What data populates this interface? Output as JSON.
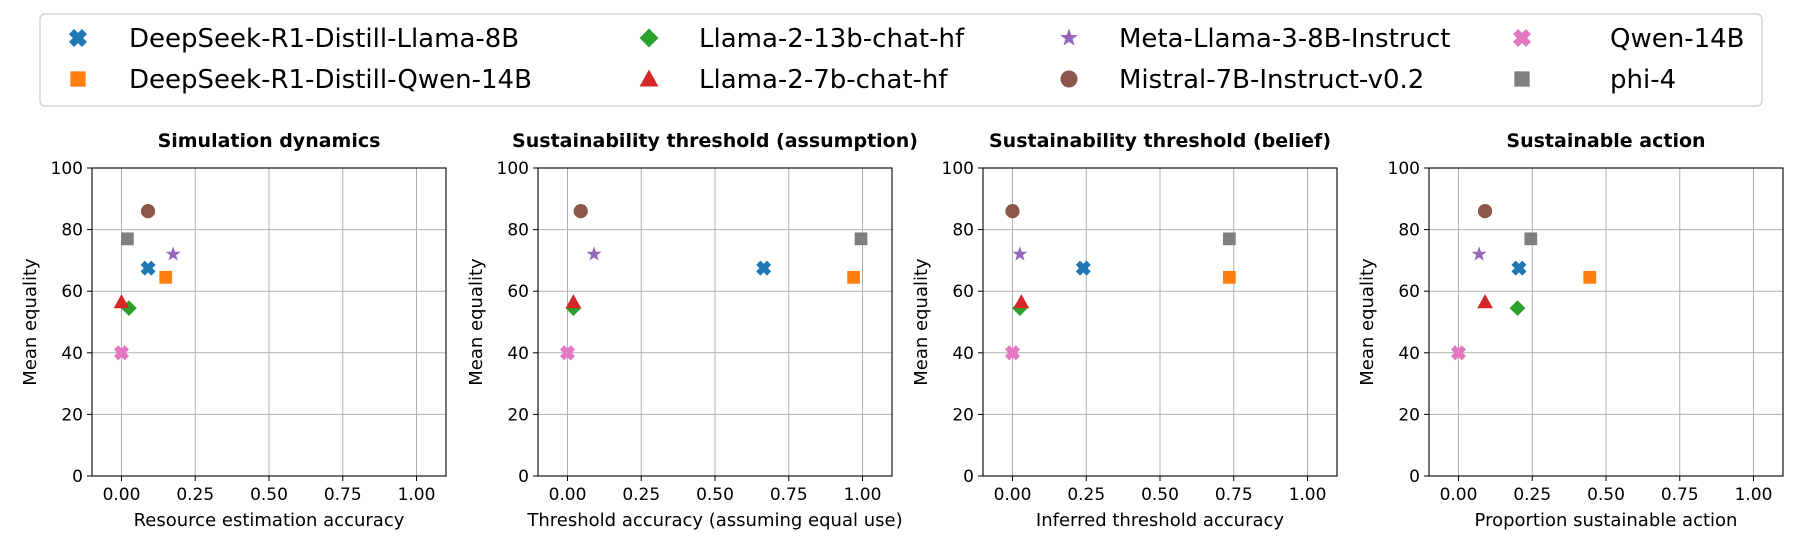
{
  "legend": {
    "placement": "top",
    "columns": 4,
    "entries": [
      {
        "name": "DeepSeek-R1-Distill-Llama-8B",
        "color": "#1f77b4",
        "marker": "x-cross"
      },
      {
        "name": "DeepSeek-R1-Distill-Qwen-14B",
        "color": "#ff7f0e",
        "marker": "square"
      },
      {
        "name": "Llama-2-13b-chat-hf",
        "color": "#2ca02c",
        "marker": "diamond"
      },
      {
        "name": "Llama-2-7b-chat-hf",
        "color": "#d62728",
        "marker": "triangle"
      },
      {
        "name": "Meta-Llama-3-8B-Instruct",
        "color": "#9467bd",
        "marker": "star"
      },
      {
        "name": "Mistral-7B-Instruct-v0.2",
        "color": "#8c564b",
        "marker": "circle"
      },
      {
        "name": "Qwen-14B",
        "color": "#e377c2",
        "marker": "x-cross"
      },
      {
        "name": "phi-4",
        "color": "#7f7f7f",
        "marker": "square"
      }
    ]
  },
  "chart_data": [
    {
      "type": "scatter",
      "title": "Simulation dynamics",
      "xlabel": "Resource estimation accuracy",
      "ylabel": "Mean equality",
      "xlim": [
        -0.1,
        1.1
      ],
      "ylim": [
        0,
        100
      ],
      "xticks": [
        "0.00",
        "0.25",
        "0.50",
        "0.75",
        "1.00"
      ],
      "yticks": [
        "0",
        "20",
        "40",
        "60",
        "80",
        "100"
      ],
      "grid": true,
      "points": [
        {
          "series": "DeepSeek-R1-Distill-Llama-8B",
          "x": 0.09,
          "y": 67.5
        },
        {
          "series": "DeepSeek-R1-Distill-Qwen-14B",
          "x": 0.15,
          "y": 64.5
        },
        {
          "series": "Llama-2-13b-chat-hf",
          "x": 0.025,
          "y": 54.5
        },
        {
          "series": "Llama-2-7b-chat-hf",
          "x": 0.0,
          "y": 56.5
        },
        {
          "series": "Meta-Llama-3-8B-Instruct",
          "x": 0.175,
          "y": 72
        },
        {
          "series": "Mistral-7B-Instruct-v0.2",
          "x": 0.09,
          "y": 86
        },
        {
          "series": "Qwen-14B",
          "x": 0.0,
          "y": 40
        },
        {
          "series": "phi-4",
          "x": 0.02,
          "y": 77
        }
      ]
    },
    {
      "type": "scatter",
      "title": "Sustainability threshold (assumption)",
      "xlabel": "Threshold accuracy (assuming equal use)",
      "ylabel": "Mean equality",
      "xlim": [
        -0.1,
        1.1
      ],
      "ylim": [
        0,
        100
      ],
      "xticks": [
        "0.00",
        "0.25",
        "0.50",
        "0.75",
        "1.00"
      ],
      "yticks": [
        "0",
        "20",
        "40",
        "60",
        "80",
        "100"
      ],
      "grid": true,
      "points": [
        {
          "series": "DeepSeek-R1-Distill-Llama-8B",
          "x": 0.665,
          "y": 67.5
        },
        {
          "series": "DeepSeek-R1-Distill-Qwen-14B",
          "x": 0.97,
          "y": 64.5
        },
        {
          "series": "Llama-2-13b-chat-hf",
          "x": 0.02,
          "y": 54.5
        },
        {
          "series": "Llama-2-7b-chat-hf",
          "x": 0.02,
          "y": 56.5
        },
        {
          "series": "Meta-Llama-3-8B-Instruct",
          "x": 0.09,
          "y": 72
        },
        {
          "series": "Mistral-7B-Instruct-v0.2",
          "x": 0.045,
          "y": 86
        },
        {
          "series": "Qwen-14B",
          "x": 0.0,
          "y": 40
        },
        {
          "series": "phi-4",
          "x": 0.995,
          "y": 77
        }
      ]
    },
    {
      "type": "scatter",
      "title": "Sustainability threshold (belief)",
      "xlabel": "Inferred threshold accuracy",
      "ylabel": "Mean equality",
      "xlim": [
        -0.1,
        1.1
      ],
      "ylim": [
        0,
        100
      ],
      "xticks": [
        "0.00",
        "0.25",
        "0.50",
        "0.75",
        "1.00"
      ],
      "yticks": [
        "0",
        "20",
        "40",
        "60",
        "80",
        "100"
      ],
      "grid": true,
      "points": [
        {
          "series": "DeepSeek-R1-Distill-Llama-8B",
          "x": 0.24,
          "y": 67.5
        },
        {
          "series": "DeepSeek-R1-Distill-Qwen-14B",
          "x": 0.735,
          "y": 64.5
        },
        {
          "series": "Llama-2-13b-chat-hf",
          "x": 0.025,
          "y": 54.5
        },
        {
          "series": "Llama-2-7b-chat-hf",
          "x": 0.03,
          "y": 56.5
        },
        {
          "series": "Meta-Llama-3-8B-Instruct",
          "x": 0.025,
          "y": 72
        },
        {
          "series": "Mistral-7B-Instruct-v0.2",
          "x": 0.0,
          "y": 86
        },
        {
          "series": "Qwen-14B",
          "x": 0.0,
          "y": 40
        },
        {
          "series": "phi-4",
          "x": 0.735,
          "y": 77
        }
      ]
    },
    {
      "type": "scatter",
      "title": "Sustainable action",
      "xlabel": "Proportion sustainable action",
      "ylabel": "Mean equality",
      "xlim": [
        -0.1,
        1.1
      ],
      "ylim": [
        0,
        100
      ],
      "xticks": [
        "0.00",
        "0.25",
        "0.50",
        "0.75",
        "1.00"
      ],
      "yticks": [
        "0",
        "20",
        "40",
        "60",
        "80",
        "100"
      ],
      "grid": true,
      "points": [
        {
          "series": "DeepSeek-R1-Distill-Llama-8B",
          "x": 0.205,
          "y": 67.5
        },
        {
          "series": "DeepSeek-R1-Distill-Qwen-14B",
          "x": 0.445,
          "y": 64.5
        },
        {
          "series": "Llama-2-13b-chat-hf",
          "x": 0.2,
          "y": 54.5
        },
        {
          "series": "Llama-2-7b-chat-hf",
          "x": 0.09,
          "y": 56.5
        },
        {
          "series": "Meta-Llama-3-8B-Instruct",
          "x": 0.07,
          "y": 72
        },
        {
          "series": "Mistral-7B-Instruct-v0.2",
          "x": 0.09,
          "y": 86
        },
        {
          "series": "Qwen-14B",
          "x": 0.0,
          "y": 40
        },
        {
          "series": "phi-4",
          "x": 0.245,
          "y": 77
        }
      ]
    }
  ]
}
